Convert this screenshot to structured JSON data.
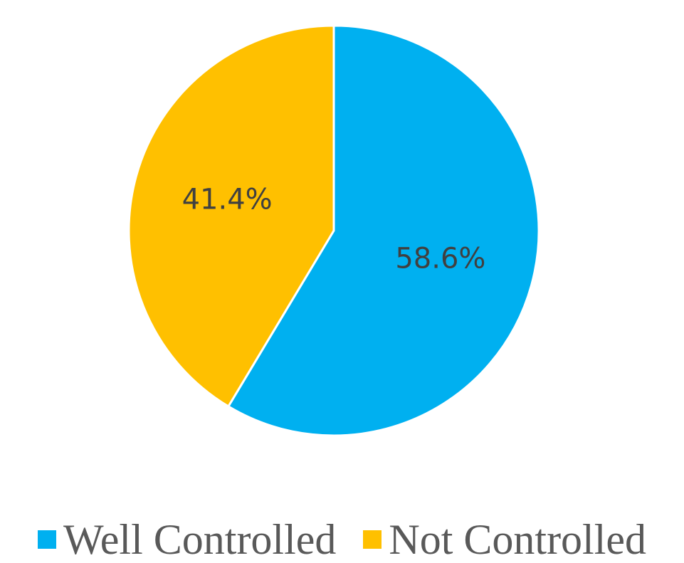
{
  "chart_data": {
    "type": "pie",
    "title": "",
    "categories": [
      "Well Controlled",
      "Not Controlled"
    ],
    "values": [
      58.6,
      41.4
    ],
    "data_labels": [
      "58.6%",
      "41.4%"
    ],
    "colors": [
      "#00B0F0",
      "#FFC000"
    ],
    "start_angle_deg": 0,
    "direction": "clockwise",
    "legend_position": "bottom"
  },
  "legend": {
    "items": [
      {
        "label": "Well Controlled",
        "color": "#00B0F0"
      },
      {
        "label": "Not Controlled",
        "color": "#FFC000"
      }
    ]
  }
}
